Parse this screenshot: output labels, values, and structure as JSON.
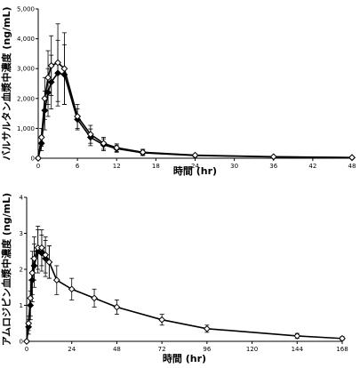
{
  "chart_data": [
    {
      "type": "line",
      "xlabel": "時間 (hr)",
      "ylabel": "バルサルタン血漿中濃度 (ng/mL)",
      "xlim": [
        0,
        48
      ],
      "ylim": [
        0,
        5000
      ],
      "xticks": [
        0,
        6,
        12,
        18,
        24,
        30,
        36,
        42,
        48
      ],
      "yticks": [
        0,
        1000,
        2000,
        3000,
        4000,
        5000
      ],
      "ytick_labels": [
        "0",
        "1,000",
        "2,000",
        "3,000",
        "4,000",
        "5,000"
      ],
      "grid": false,
      "series": [
        {
          "marker": "filled-diamond",
          "color": "#000000",
          "x": [
            0,
            0.5,
            1,
            1.5,
            2,
            3,
            4,
            6,
            8,
            10,
            12,
            16,
            24,
            36,
            48
          ],
          "y": [
            0,
            500,
            1600,
            2200,
            2550,
            2850,
            2800,
            1300,
            700,
            450,
            320,
            180,
            90,
            45,
            20
          ],
          "err": [
            0,
            250,
            650,
            800,
            900,
            1100,
            1000,
            350,
            280,
            200,
            120,
            90,
            40,
            20,
            10
          ]
        },
        {
          "marker": "open-diamond",
          "color": "#000000",
          "x": [
            0,
            0.5,
            1,
            1.5,
            2,
            3,
            4,
            6,
            8,
            10,
            12,
            16,
            24,
            36,
            48
          ],
          "y": [
            0,
            700,
            2000,
            2700,
            3100,
            3200,
            3000,
            1400,
            800,
            500,
            350,
            200,
            100,
            50,
            25
          ],
          "err": [
            0,
            300,
            700,
            900,
            1000,
            1300,
            1200,
            400,
            300,
            200,
            130,
            100,
            40,
            20,
            10
          ]
        }
      ]
    },
    {
      "type": "line",
      "xlabel": "時間 (hr)",
      "ylabel": "アムロジピン血漿中濃度 (ng/mL)",
      "xlim": [
        0,
        168
      ],
      "ylim": [
        0,
        4
      ],
      "xticks": [
        0,
        24,
        48,
        72,
        96,
        120,
        144,
        168
      ],
      "yticks": [
        0,
        1,
        2,
        3,
        4
      ],
      "ytick_labels": [
        "0",
        "1",
        "2",
        "3",
        "4"
      ],
      "grid": false,
      "series": [
        {
          "marker": "filled-diamond",
          "color": "#000000",
          "x": [
            0,
            1,
            2,
            3,
            4,
            6,
            8,
            10,
            12
          ],
          "y": [
            0,
            0.4,
            1.0,
            1.7,
            2.1,
            2.5,
            2.45,
            2.3,
            2.2
          ],
          "err": [
            0,
            0.2,
            0.4,
            0.6,
            0.6,
            0.6,
            0.5,
            0.5,
            0.45
          ]
        },
        {
          "marker": "open-diamond",
          "color": "#000000",
          "x": [
            0,
            1,
            2,
            3,
            4,
            6,
            8,
            10,
            12,
            16,
            24,
            36,
            48,
            72,
            96,
            144,
            168
          ],
          "y": [
            0,
            0.5,
            1.2,
            1.9,
            2.3,
            2.6,
            2.6,
            2.4,
            2.2,
            1.7,
            1.45,
            1.2,
            0.95,
            0.6,
            0.35,
            0.15,
            0.08
          ],
          "err": [
            0,
            0.2,
            0.5,
            0.6,
            0.6,
            0.6,
            0.5,
            0.5,
            0.45,
            0.4,
            0.3,
            0.25,
            0.2,
            0.15,
            0.1,
            0.07,
            0.05
          ]
        }
      ]
    }
  ]
}
